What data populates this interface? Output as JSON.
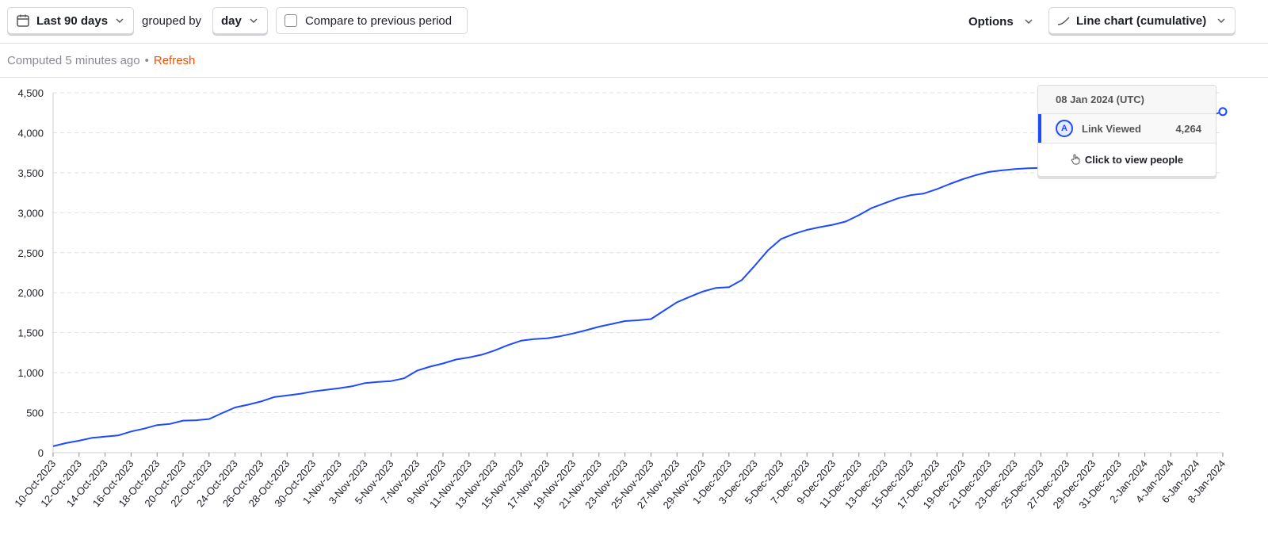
{
  "toolbar": {
    "date_range": "Last 90 days",
    "grouped_by_label": "grouped by",
    "interval": "day",
    "compare_label": "Compare to previous period",
    "compare_checked": false,
    "options_label": "Options",
    "chart_type_label": "Line chart (cumulative)"
  },
  "status": {
    "computed": "Computed 5 minutes ago",
    "separator": "•",
    "refresh": "Refresh"
  },
  "tooltip": {
    "date": "08 Jan 2024 (UTC)",
    "badge": "A",
    "series_label": "Link Viewed",
    "value": "4,264",
    "action": "Click to view people"
  },
  "colors": {
    "series": "#1d4aff",
    "accent": "#f54e00",
    "grid": "#e0e0e4",
    "axis_text": "#1d1f27"
  },
  "chart_data": {
    "type": "line",
    "title": "",
    "xlabel": "",
    "ylabel": "",
    "ylim": [
      0,
      4500
    ],
    "yticks": [
      0,
      500,
      1000,
      1500,
      2000,
      2500,
      3000,
      3500,
      4000,
      4500
    ],
    "ytick_labels": [
      "0",
      "500",
      "1,000",
      "1,500",
      "2,000",
      "2,500",
      "3,000",
      "3,500",
      "4,000",
      "4,500"
    ],
    "grid": true,
    "x_tick_labels": [
      "10-Oct-2023",
      "12-Oct-2023",
      "14-Oct-2023",
      "16-Oct-2023",
      "18-Oct-2023",
      "20-Oct-2023",
      "22-Oct-2023",
      "24-Oct-2023",
      "26-Oct-2023",
      "28-Oct-2023",
      "30-Oct-2023",
      "1-Nov-2023",
      "3-Nov-2023",
      "5-Nov-2023",
      "7-Nov-2023",
      "9-Nov-2023",
      "11-Nov-2023",
      "13-Nov-2023",
      "15-Nov-2023",
      "17-Nov-2023",
      "19-Nov-2023",
      "21-Nov-2023",
      "23-Nov-2023",
      "25-Nov-2023",
      "27-Nov-2023",
      "29-Nov-2023",
      "1-Dec-2023",
      "3-Dec-2023",
      "5-Dec-2023",
      "7-Dec-2023",
      "9-Dec-2023",
      "11-Dec-2023",
      "13-Dec-2023",
      "15-Dec-2023",
      "17-Dec-2023",
      "19-Dec-2023",
      "21-Dec-2023",
      "23-Dec-2023",
      "25-Dec-2023",
      "27-Dec-2023",
      "29-Dec-2023",
      "31-Dec-2023",
      "2-Jan-2024",
      "4-Jan-2024",
      "6-Jan-2024",
      "8-Jan-2024"
    ],
    "x_start": "2023-10-10",
    "x_end": "2024-01-08",
    "series": [
      {
        "name": "Link Viewed",
        "x": [
          "2023-10-10",
          "2023-10-11",
          "2023-10-12",
          "2023-10-13",
          "2023-10-14",
          "2023-10-15",
          "2023-10-16",
          "2023-10-17",
          "2023-10-18",
          "2023-10-19",
          "2023-10-20",
          "2023-10-21",
          "2023-10-22",
          "2023-10-23",
          "2023-10-24",
          "2023-10-25",
          "2023-10-26",
          "2023-10-27",
          "2023-10-28",
          "2023-10-29",
          "2023-10-30",
          "2023-10-31",
          "2023-11-01",
          "2023-11-02",
          "2023-11-03",
          "2023-11-04",
          "2023-11-05",
          "2023-11-06",
          "2023-11-07",
          "2023-11-08",
          "2023-11-09",
          "2023-11-10",
          "2023-11-11",
          "2023-11-12",
          "2023-11-13",
          "2023-11-14",
          "2023-11-15",
          "2023-11-16",
          "2023-11-17",
          "2023-11-18",
          "2023-11-19",
          "2023-11-20",
          "2023-11-21",
          "2023-11-22",
          "2023-11-23",
          "2023-11-24",
          "2023-11-25",
          "2023-11-26",
          "2023-11-27",
          "2023-11-28",
          "2023-11-29",
          "2023-11-30",
          "2023-12-01",
          "2023-12-02",
          "2023-12-03",
          "2023-12-04",
          "2023-12-05",
          "2023-12-06",
          "2023-12-07",
          "2023-12-08",
          "2023-12-09",
          "2023-12-10",
          "2023-12-11",
          "2023-12-12",
          "2023-12-13",
          "2023-12-14",
          "2023-12-15",
          "2023-12-16",
          "2023-12-17",
          "2023-12-18",
          "2023-12-19",
          "2023-12-20",
          "2023-12-21",
          "2023-12-22",
          "2023-12-23",
          "2023-12-24",
          "2023-12-25",
          "2024-01-08"
        ],
        "y": [
          80,
          120,
          150,
          185,
          200,
          215,
          265,
          300,
          345,
          360,
          400,
          405,
          420,
          495,
          565,
          600,
          640,
          695,
          715,
          735,
          765,
          785,
          805,
          830,
          870,
          885,
          895,
          930,
          1025,
          1075,
          1115,
          1165,
          1190,
          1225,
          1280,
          1345,
          1400,
          1420,
          1430,
          1455,
          1490,
          1530,
          1575,
          1610,
          1645,
          1655,
          1670,
          1775,
          1880,
          1950,
          2015,
          2060,
          2070,
          2160,
          2340,
          2530,
          2670,
          2735,
          2785,
          2820,
          2850,
          2890,
          2970,
          3060,
          3120,
          3180,
          3220,
          3240,
          3295,
          3360,
          3420,
          3470,
          3510,
          3530,
          3545,
          3555,
          3560,
          4264
        ]
      }
    ]
  }
}
